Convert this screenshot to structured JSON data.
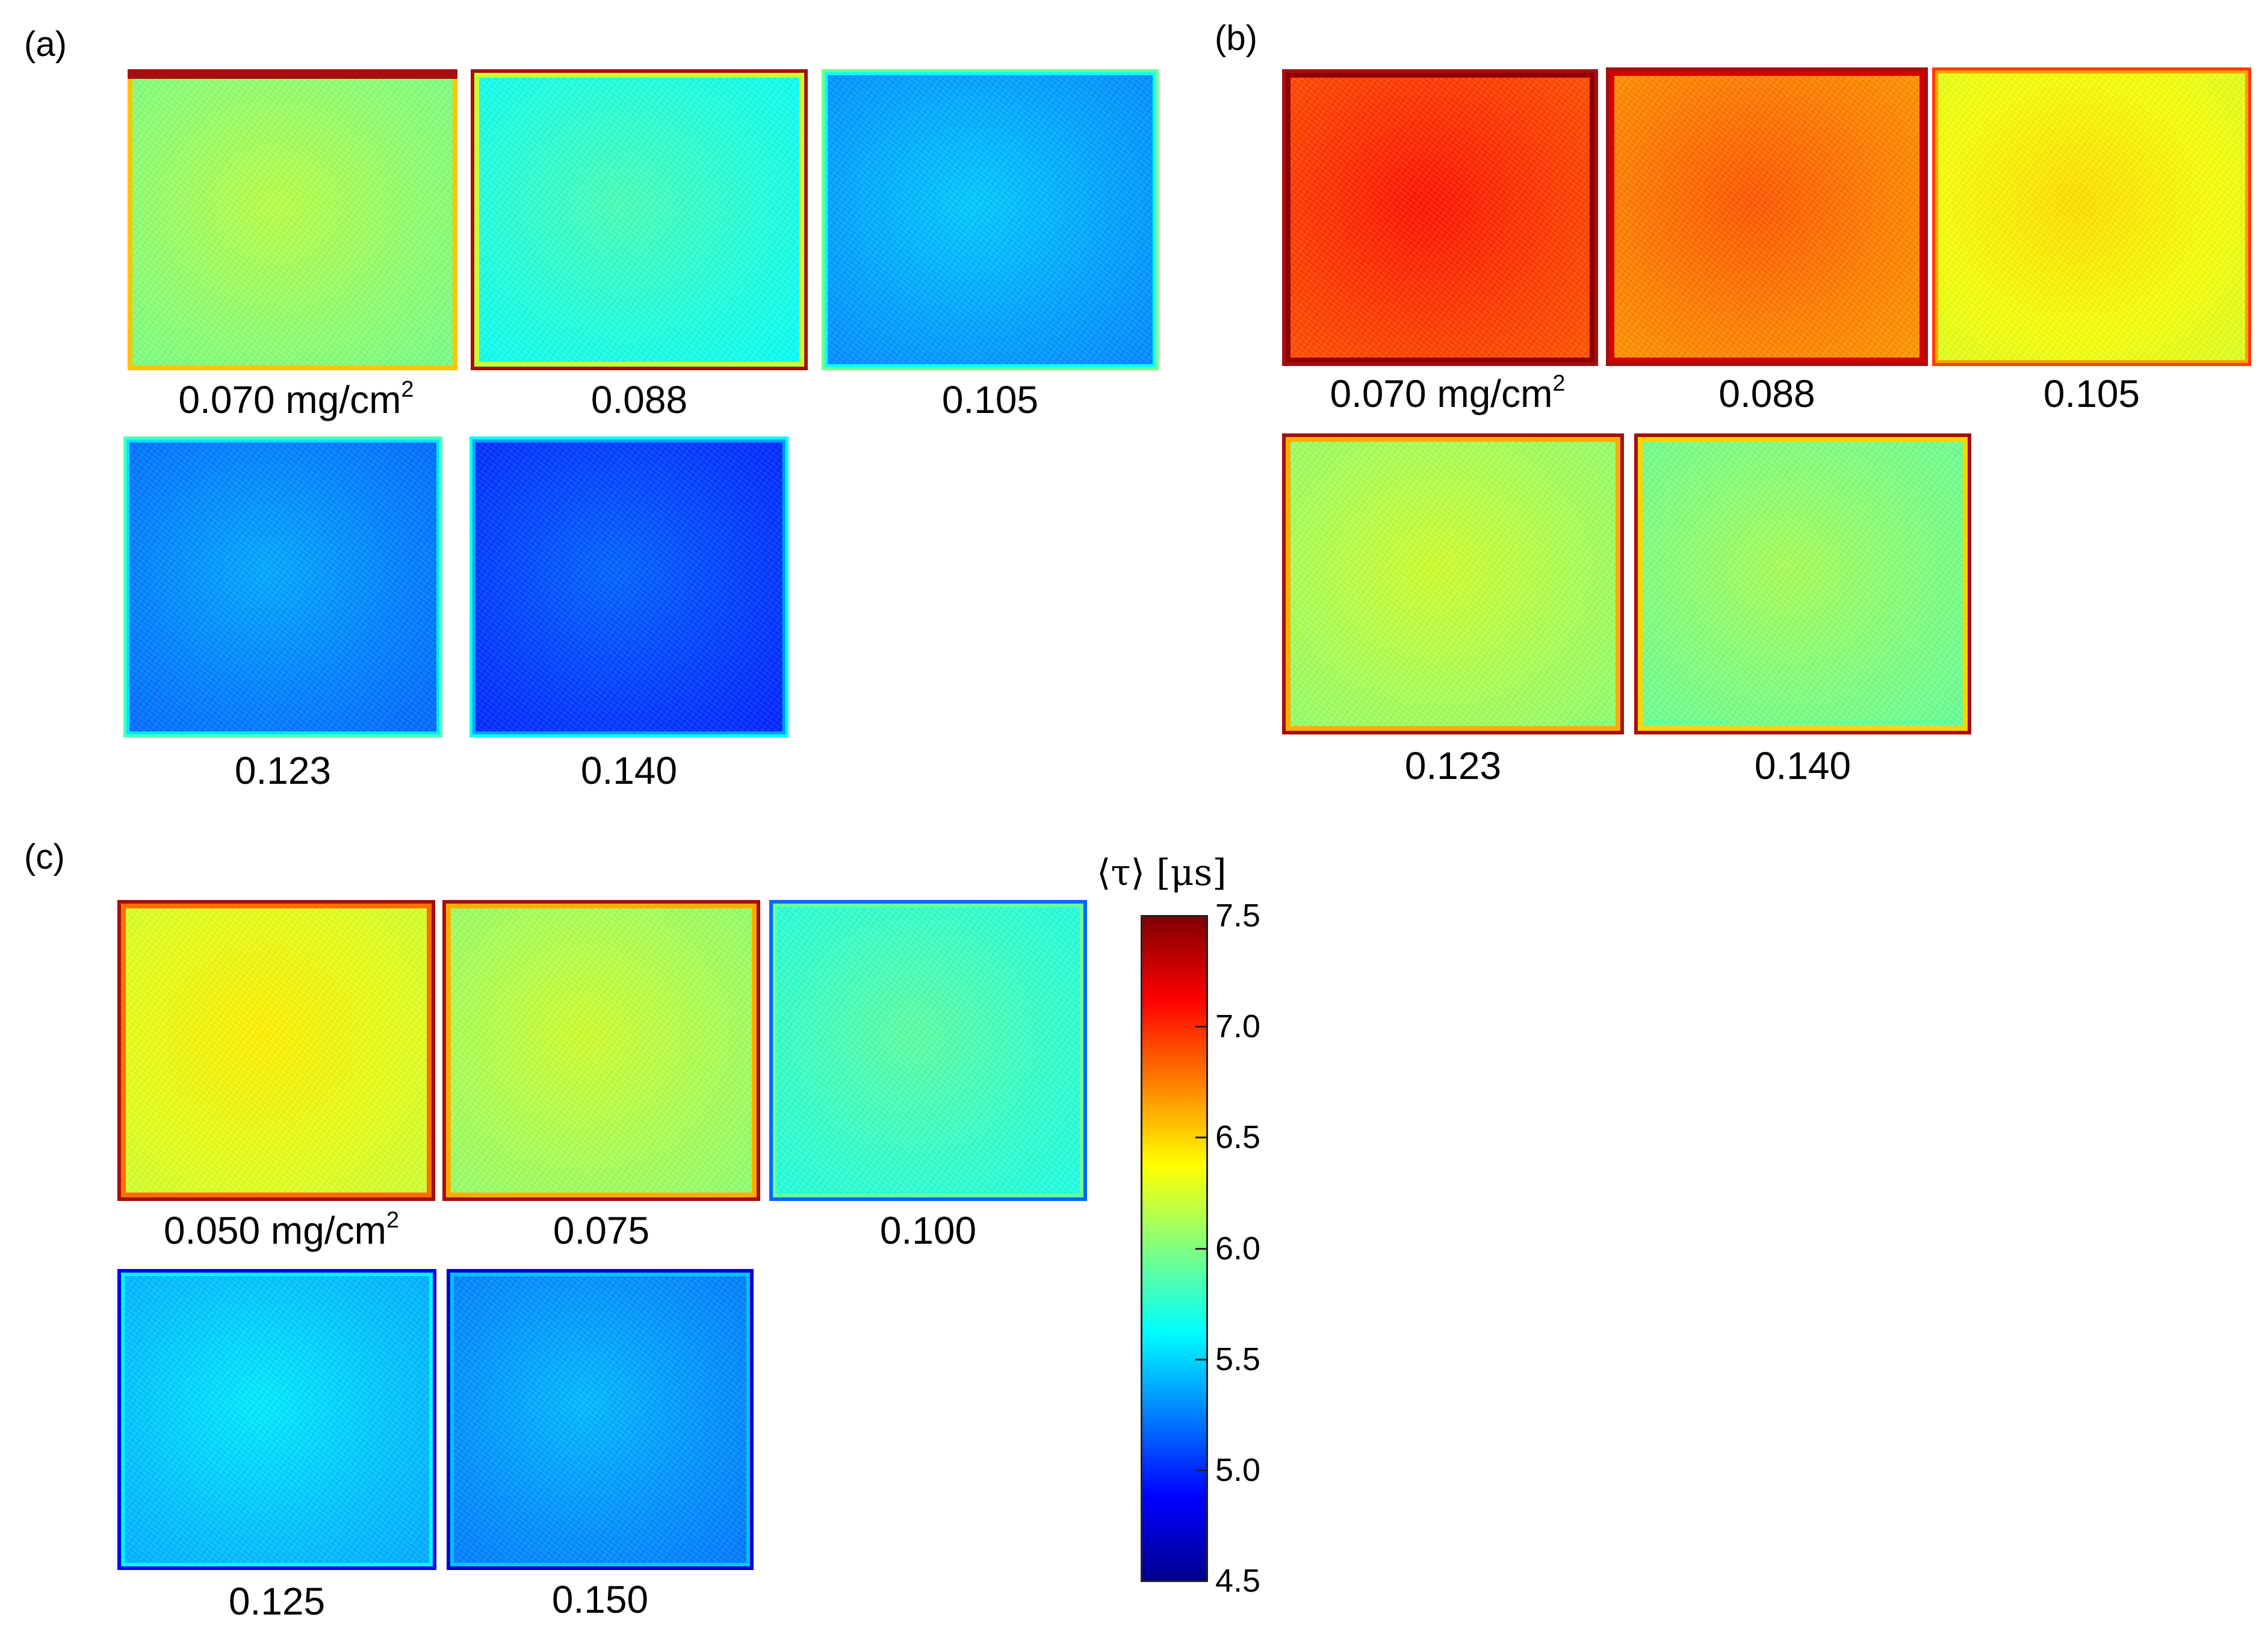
{
  "colors": {
    "jet": [
      "#00008f",
      "#0000ff",
      "#0080ff",
      "#00ffff",
      "#80ff80",
      "#ffff00",
      "#ff8000",
      "#ff0000",
      "#800000"
    ],
    "edge_dark_red": "#a50f0f"
  },
  "panels": [
    {
      "label": "(a)",
      "tiles": [
        {
          "label_main": "0.070 mg/cm",
          "label_sup": "2",
          "value": 6.05,
          "edge": "red-top"
        },
        {
          "label_main": "0.088",
          "label_sup": "",
          "value": 5.72,
          "edge": "red-frame"
        },
        {
          "label_main": "0.105",
          "label_sup": "",
          "value": 5.35,
          "edge": "speckle"
        },
        {
          "label_main": "0.123",
          "label_sup": "",
          "value": 5.25,
          "edge": "speckle"
        },
        {
          "label_main": "0.140",
          "label_sup": "",
          "value": 5.05,
          "edge": "speckle"
        }
      ]
    },
    {
      "label": "(b)",
      "tiles": [
        {
          "label_main": "0.070 mg/cm",
          "label_sup": "2",
          "value": 6.95,
          "edge": "red-frame"
        },
        {
          "label_main": "0.088",
          "label_sup": "",
          "value": 6.75,
          "edge": "red-frame"
        },
        {
          "label_main": "0.105",
          "label_sup": "",
          "value": 6.35,
          "edge": "speckle"
        },
        {
          "label_main": "0.123",
          "label_sup": "",
          "value": 6.12,
          "edge": "red-frame"
        },
        {
          "label_main": "0.140",
          "label_sup": "",
          "value": 6.0,
          "edge": "red-frame"
        }
      ]
    },
    {
      "label": "(c)",
      "tiles": [
        {
          "label_main": "0.050 mg/cm",
          "label_sup": "2",
          "value": 6.3,
          "edge": "red-frame"
        },
        {
          "label_main": "0.075",
          "label_sup": "",
          "value": 6.12,
          "edge": "red-frame"
        },
        {
          "label_main": "0.100",
          "label_sup": "",
          "value": 5.78,
          "edge": "blue-frame"
        },
        {
          "label_main": "0.125",
          "label_sup": "",
          "value": 5.45,
          "edge": "blue-frame"
        },
        {
          "label_main": "0.150",
          "label_sup": "",
          "value": 5.3,
          "edge": "blue-frame"
        }
      ]
    }
  ],
  "colorbar": {
    "title": "⟨τ⟩ [μs]",
    "min": 4.5,
    "max": 7.5,
    "ticks": [
      "7.5",
      "7.0",
      "6.5",
      "6.0",
      "5.5",
      "5.0",
      "4.5"
    ]
  }
}
